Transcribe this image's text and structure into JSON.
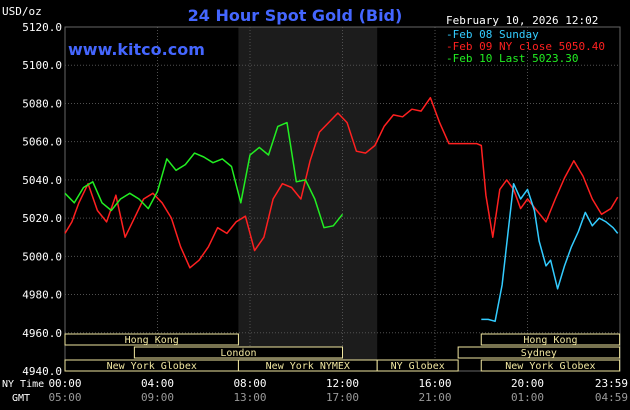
{
  "header": {
    "unit_label": "USD/oz",
    "title": "24 Hour Spot Gold (Bid)",
    "source": "www.kitco.com",
    "date": "February 10, 2026 12:02"
  },
  "legend": {
    "placement": "top-right",
    "items": [
      {
        "label": "-Feb 08 Sunday",
        "color": "#33ccff"
      },
      {
        "label": "-Feb 09 NY close 5050.40",
        "color": "#ff2020"
      },
      {
        "label": "-Feb 10 Last 5023.30",
        "color": "#22ee22"
      }
    ]
  },
  "sessions": [
    {
      "label": "Hong Kong",
      "row": 0,
      "x0": "00:00",
      "x1": "07:30"
    },
    {
      "label": "Hong Kong",
      "row": 0,
      "x0": "18:00",
      "x1": "23:59"
    },
    {
      "label": "London",
      "row": 1,
      "x0": "03:00",
      "x1": "12:00"
    },
    {
      "label": "Sydney",
      "row": 1,
      "x0": "17:00",
      "x1": "23:59"
    },
    {
      "label": "New York Globex",
      "row": 2,
      "x0": "00:00",
      "x1": "07:30"
    },
    {
      "label": "New York NYMEX",
      "row": 2,
      "x0": "07:30",
      "x1": "13:30"
    },
    {
      "label": "NY Globex",
      "row": 2,
      "x0": "13:30",
      "x1": "17:00"
    },
    {
      "label": "New York Globex",
      "row": 2,
      "x0": "18:00",
      "x1": "23:59"
    }
  ],
  "axis_row_labels": {
    "ny": "NY Time",
    "gmt": "GMT"
  },
  "colors": {
    "background": "#000000",
    "grid": "#505050",
    "nymex_band": "#1c1c1c",
    "title": "#4466ff",
    "source": "#4466ff",
    "text": "#ffffff",
    "session_box": "#f0e6a0",
    "ny_close": "#ff2020",
    "sunday": "#33ccff",
    "today": "#22ee22"
  },
  "chart_data": {
    "type": "line",
    "title": "24 Hour Spot Gold (Bid)",
    "ylabel": "USD/oz",
    "ylim": [
      4940,
      5120
    ],
    "yticks": [
      4940,
      4960,
      4980,
      5000,
      5020,
      5040,
      5060,
      5080,
      5100,
      5120
    ],
    "ytick_labels": [
      "4940.0",
      "4960.0",
      "4980.0",
      "5000.0",
      "5020.0",
      "5040.0",
      "5060.0",
      "5080.0",
      "5100.0",
      "5120.0"
    ],
    "xlim": [
      0,
      24
    ],
    "x_unit": "hours (NY time)",
    "xticks": [
      0,
      4,
      8,
      12,
      16,
      20,
      24
    ],
    "xtick_labels": [
      "00:00",
      "04:00",
      "08:00",
      "12:00",
      "16:00",
      "20:00",
      "23:59"
    ],
    "gmt_labels": [
      "05:00",
      "09:00",
      "13:00",
      "17:00",
      "21:00",
      "01:00",
      "04:59"
    ],
    "grid": true,
    "nymex_band_hours": [
      7.5,
      13.5
    ],
    "series": [
      {
        "name": "Feb 09 NY close 5050.40",
        "color": "#ff2020",
        "x": [
          0,
          0.3,
          0.6,
          1.0,
          1.4,
          1.8,
          2.2,
          2.6,
          3.0,
          3.4,
          3.8,
          4.2,
          4.6,
          5.0,
          5.4,
          5.8,
          6.2,
          6.6,
          7.0,
          7.4,
          7.8,
          8.2,
          8.6,
          9.0,
          9.4,
          9.8,
          10.2,
          10.6,
          11.0,
          11.4,
          11.8,
          12.2,
          12.6,
          13.0,
          13.4,
          13.8,
          14.2,
          14.6,
          15.0,
          15.4,
          15.8,
          16.2,
          16.6,
          17.0,
          17.4,
          17.8,
          18.0,
          18.2,
          18.5,
          18.8,
          19.1,
          19.4,
          19.7,
          20.0,
          20.4,
          20.8,
          21.2,
          21.6,
          22.0,
          22.4,
          22.8,
          23.2,
          23.6,
          23.9
        ],
        "values": [
          5012,
          5018,
          5028,
          5038,
          5024,
          5018,
          5032,
          5010,
          5020,
          5030,
          5033,
          5028,
          5020,
          5005,
          4994,
          4998,
          5005,
          5015,
          5012,
          5018,
          5021,
          5003,
          5010,
          5030,
          5038,
          5036,
          5030,
          5050,
          5065,
          5070,
          5075,
          5070,
          5055,
          5054,
          5058,
          5068,
          5074,
          5073,
          5077,
          5076,
          5083,
          5070,
          5059,
          5059,
          5059,
          5059,
          5058,
          5032,
          5010,
          5035,
          5040,
          5035,
          5025,
          5030,
          5024,
          5018,
          5030,
          5041,
          5050,
          5042,
          5030,
          5022,
          5025,
          5031
        ]
      },
      {
        "name": "Feb 08 Sunday",
        "color": "#33ccff",
        "x": [
          18.0,
          18.3,
          18.6,
          18.9,
          19.2,
          19.4,
          19.7,
          20.0,
          20.3,
          20.5,
          20.8,
          21.0,
          21.3,
          21.6,
          21.9,
          22.2,
          22.5,
          22.8,
          23.1,
          23.4,
          23.7,
          23.9
        ],
        "values": [
          4967,
          4967,
          4966,
          4985,
          5017,
          5038,
          5030,
          5035,
          5024,
          5008,
          4995,
          4998,
          4983,
          4995,
          5005,
          5013,
          5023,
          5016,
          5020,
          5018,
          5015,
          5012
        ]
      },
      {
        "name": "Feb 10 Last 5023.30",
        "color": "#22ee22",
        "x": [
          0,
          0.4,
          0.8,
          1.2,
          1.6,
          2.0,
          2.4,
          2.8,
          3.2,
          3.6,
          4.0,
          4.4,
          4.8,
          5.2,
          5.6,
          6.0,
          6.4,
          6.8,
          7.2,
          7.6,
          8.0,
          8.4,
          8.8,
          9.2,
          9.6,
          10.0,
          10.4,
          10.8,
          11.2,
          11.6,
          12.0
        ],
        "values": [
          5033,
          5028,
          5036,
          5039,
          5028,
          5024,
          5030,
          5033,
          5030,
          5025,
          5034,
          5051,
          5045,
          5048,
          5054,
          5052,
          5049,
          5051,
          5047,
          5028,
          5053,
          5057,
          5053,
          5068,
          5070,
          5039,
          5040,
          5030,
          5015,
          5016,
          5022
        ]
      }
    ]
  }
}
